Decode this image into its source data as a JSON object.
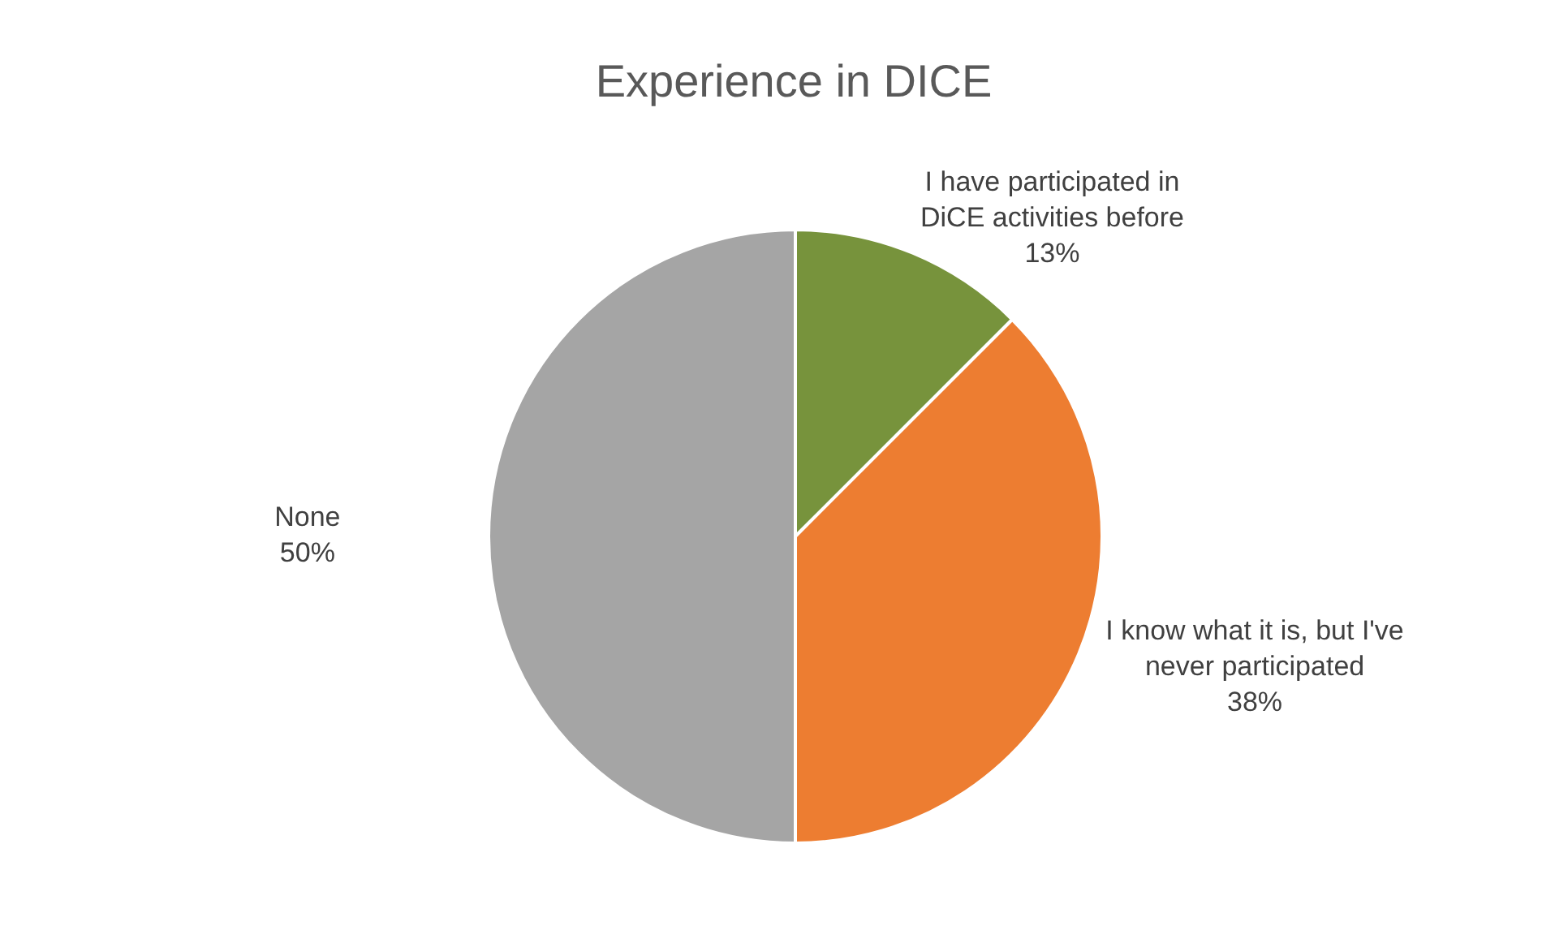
{
  "chart_data": {
    "type": "pie",
    "title": "Experience in DICE",
    "categories": [
      "I have participated in DiCE activities before",
      "I know what it is, but I've never participated",
      "None"
    ],
    "values": [
      12.5,
      37.5,
      50
    ],
    "value_labels": [
      "13%",
      "38%",
      "50%"
    ],
    "colors": [
      "#77933c",
      "#ed7d31",
      "#a5a5a5"
    ],
    "legend": false
  }
}
